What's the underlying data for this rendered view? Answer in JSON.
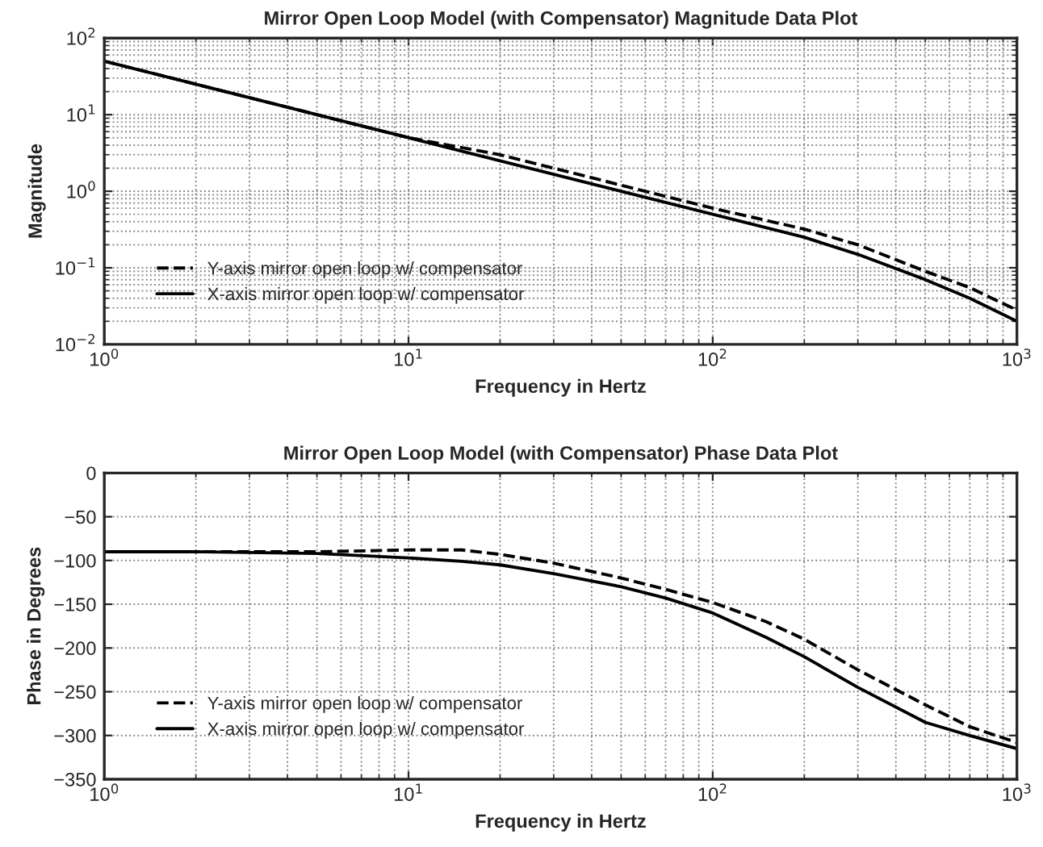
{
  "chart_data": [
    {
      "type": "line",
      "title": "Mirror Open Loop Model (with Compensator) Magnitude Data Plot",
      "xlabel": "Frequency in Hertz",
      "ylabel": "Magnitude",
      "log": "xy",
      "grid": true,
      "legend": "lower left",
      "xlim": [
        1,
        1000
      ],
      "xticks": [
        {
          "value": 1,
          "label": "10$^{0}$"
        },
        {
          "value": 10,
          "label": "10$^{1}$"
        },
        {
          "value": 100,
          "label": "10$^{2}$"
        },
        {
          "value": 1000,
          "label": "10$^{3}$"
        }
      ],
      "ylim": [
        0.01,
        100
      ],
      "yticks": [
        {
          "value": 0.01,
          "label": "10$^{−2}$"
        },
        {
          "value": 0.1,
          "label": "10$^{−1}$"
        },
        {
          "value": 1,
          "label": "10$^{0}$"
        },
        {
          "value": 10,
          "label": "10$^{1}$"
        },
        {
          "value": 100,
          "label": "10$^{2}$"
        }
      ],
      "x": [
        1,
        2,
        5,
        10,
        20,
        50,
        100,
        200,
        300,
        500,
        700,
        1000
      ],
      "series": [
        {
          "name": "Y-axis mirror open loop w/ compensator",
          "color": "#000000",
          "line_style": "dashed",
          "values": [
            50,
            25,
            10,
            5,
            3.0,
            1.2,
            0.6,
            0.32,
            0.2,
            0.09,
            0.055,
            0.028
          ]
        },
        {
          "name": "X-axis mirror open loop w/ compensator",
          "color": "#000000",
          "line_style": "solid",
          "values": [
            50,
            25,
            10,
            5,
            2.5,
            1.0,
            0.5,
            0.25,
            0.15,
            0.07,
            0.04,
            0.02
          ]
        }
      ]
    },
    {
      "type": "line",
      "title": "Mirror Open Loop Model (with Compensator) Phase Data Plot",
      "xlabel": "Frequency in Hertz",
      "ylabel": "Phase in Degrees",
      "log": "x",
      "grid": true,
      "legend": "lower left",
      "xlim": [
        1,
        1000
      ],
      "xticks": [
        {
          "value": 1,
          "label": "10$^{0}$"
        },
        {
          "value": 10,
          "label": "10$^{1}$"
        },
        {
          "value": 100,
          "label": "10$^{2}$"
        },
        {
          "value": 1000,
          "label": "10$^{3}$"
        }
      ],
      "ylim": [
        -350,
        0
      ],
      "yticks": [
        -350,
        -300,
        -250,
        -200,
        -150,
        -100,
        -50,
        0
      ],
      "x": [
        1,
        2,
        5,
        10,
        15,
        20,
        30,
        50,
        70,
        100,
        150,
        200,
        300,
        500,
        700,
        1000
      ],
      "series": [
        {
          "name": "Y-axis mirror open loop w/ compensator",
          "color": "#000000",
          "line_style": "dashed",
          "values": [
            -90,
            -90,
            -90,
            -88,
            -88,
            -93,
            -103,
            -120,
            -133,
            -148,
            -170,
            -190,
            -225,
            -265,
            -290,
            -308
          ]
        },
        {
          "name": "X-axis mirror open loop w/ compensator",
          "color": "#000000",
          "line_style": "solid",
          "values": [
            -90,
            -90,
            -92,
            -97,
            -101,
            -105,
            -115,
            -130,
            -143,
            -160,
            -188,
            -210,
            -245,
            -285,
            -300,
            -315
          ]
        }
      ]
    }
  ]
}
